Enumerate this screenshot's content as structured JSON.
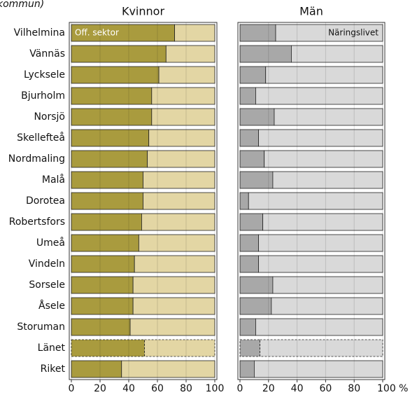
{
  "subtitle": "kommun)",
  "chart_data": [
    {
      "type": "bar",
      "orientation": "horizontal",
      "stacked": true,
      "title": "Kvinnor",
      "categories": [
        "Vilhelmina",
        "Vännäs",
        "Lycksele",
        "Bjurholm",
        "Norsjö",
        "Skellefteå",
        "Nordmaling",
        "Malå",
        "Dorotea",
        "Robertsfors",
        "Umeå",
        "Vindeln",
        "Sorsele",
        "Åsele",
        "Storuman",
        "Länet",
        "Riket"
      ],
      "series": [
        {
          "name": "Off. sektor",
          "color": "#a99b3e",
          "values": [
            72,
            66,
            61,
            56,
            56,
            54,
            53,
            50,
            50,
            49,
            47,
            44,
            43,
            43,
            41,
            51,
            35
          ]
        },
        {
          "color": "#e3d6a4",
          "values": [
            28,
            34,
            39,
            44,
            44,
            46,
            47,
            50,
            50,
            51,
            53,
            56,
            57,
            57,
            59,
            49,
            65
          ]
        }
      ],
      "xlim": [
        0,
        100
      ],
      "xticks": [
        0,
        20,
        40,
        60,
        80,
        100
      ],
      "grid": true,
      "dashed_index": 15
    },
    {
      "type": "bar",
      "orientation": "horizontal",
      "stacked": true,
      "title": "Män",
      "series": [
        {
          "color": "#a8a8a8",
          "values": [
            25,
            36,
            18,
            11,
            24,
            13,
            17,
            23,
            6,
            16,
            13,
            13,
            23,
            22,
            11,
            14,
            10
          ]
        },
        {
          "name": "Näringslivet",
          "color": "#d9d9d9",
          "values": [
            75,
            64,
            82,
            89,
            76,
            87,
            83,
            77,
            94,
            84,
            87,
            87,
            77,
            78,
            89,
            86,
            90
          ]
        }
      ],
      "xlim": [
        0,
        100
      ],
      "xticks": [
        0,
        20,
        40,
        60,
        80,
        {
          "value": 100,
          "label": "100 %"
        }
      ],
      "grid": true,
      "dashed_index": 15
    }
  ]
}
